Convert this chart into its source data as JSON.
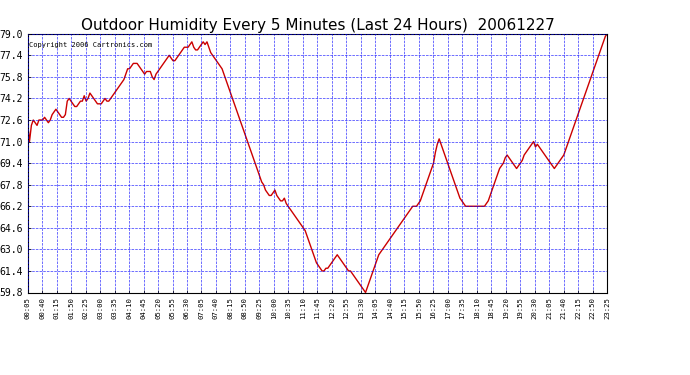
{
  "title": "Outdoor Humidity Every 5 Minutes (Last 24 Hours)  20061227",
  "copyright": "Copyright 2006 Cartronics.com",
  "ylim": [
    59.8,
    79.0
  ],
  "yticks": [
    59.8,
    61.4,
    63.0,
    64.6,
    66.2,
    67.8,
    69.4,
    71.0,
    72.6,
    74.2,
    75.8,
    77.4,
    79.0
  ],
  "bg_color": "#ffffff",
  "plot_bg_color": "#ffffff",
  "grid_color": "#0000ff",
  "line_color": "#cc0000",
  "line_width": 1.0,
  "title_fontsize": 11,
  "xtick_labels": [
    "00:05",
    "00:40",
    "01:15",
    "01:50",
    "02:25",
    "03:00",
    "03:35",
    "04:10",
    "04:45",
    "05:20",
    "05:55",
    "06:30",
    "07:05",
    "07:40",
    "08:15",
    "08:50",
    "09:25",
    "10:00",
    "10:35",
    "11:10",
    "11:45",
    "12:20",
    "12:55",
    "13:30",
    "14:05",
    "14:40",
    "15:15",
    "15:50",
    "16:25",
    "17:00",
    "17:35",
    "18:10",
    "18:45",
    "19:20",
    "19:55",
    "20:30",
    "21:05",
    "21:40",
    "22:15",
    "22:50",
    "23:25"
  ],
  "humidity_values": [
    72.4,
    71.0,
    72.2,
    72.6,
    72.4,
    72.2,
    72.6,
    72.6,
    72.6,
    72.8,
    72.6,
    72.4,
    72.6,
    73.0,
    73.2,
    73.4,
    73.2,
    73.0,
    72.8,
    72.8,
    73.0,
    74.0,
    74.2,
    74.0,
    73.8,
    73.6,
    73.6,
    73.8,
    74.0,
    74.0,
    74.4,
    74.0,
    74.2,
    74.6,
    74.4,
    74.2,
    74.0,
    73.8,
    73.8,
    73.8,
    74.0,
    74.2,
    74.0,
    74.0,
    74.2,
    74.4,
    74.6,
    74.8,
    75.0,
    75.2,
    75.4,
    75.6,
    76.0,
    76.4,
    76.4,
    76.6,
    76.8,
    76.8,
    76.8,
    76.6,
    76.4,
    76.2,
    76.0,
    76.2,
    76.2,
    76.2,
    75.8,
    75.6,
    76.0,
    76.2,
    76.4,
    76.6,
    76.8,
    77.0,
    77.2,
    77.4,
    77.2,
    77.0,
    77.0,
    77.2,
    77.4,
    77.6,
    77.8,
    78.0,
    78.0,
    78.0,
    78.2,
    78.4,
    78.0,
    77.8,
    77.8,
    78.0,
    78.2,
    78.4,
    78.2,
    78.4,
    78.0,
    77.6,
    77.4,
    77.2,
    77.0,
    76.8,
    76.6,
    76.4,
    76.0,
    75.6,
    75.2,
    74.8,
    74.4,
    74.0,
    73.6,
    73.2,
    72.8,
    72.4,
    72.0,
    71.6,
    71.2,
    70.8,
    70.4,
    70.0,
    69.6,
    69.2,
    68.8,
    68.4,
    68.0,
    67.8,
    67.4,
    67.2,
    67.0,
    67.0,
    67.2,
    67.4,
    67.0,
    66.8,
    66.6,
    66.6,
    66.8,
    66.4,
    66.2,
    66.0,
    65.8,
    65.6,
    65.4,
    65.2,
    65.0,
    64.8,
    64.6,
    64.4,
    64.0,
    63.6,
    63.2,
    62.8,
    62.4,
    62.0,
    61.8,
    61.6,
    61.4,
    61.4,
    61.6,
    61.6,
    61.8,
    62.0,
    62.2,
    62.4,
    62.6,
    62.4,
    62.2,
    62.0,
    61.8,
    61.6,
    61.4,
    61.4,
    61.2,
    61.0,
    60.8,
    60.6,
    60.4,
    60.2,
    60.0,
    59.8,
    60.2,
    60.6,
    61.0,
    61.4,
    61.8,
    62.2,
    62.6,
    62.8,
    63.0,
    63.2,
    63.4,
    63.6,
    63.8,
    64.0,
    64.2,
    64.4,
    64.6,
    64.8,
    65.0,
    65.2,
    65.4,
    65.6,
    65.8,
    66.0,
    66.2,
    66.2,
    66.2,
    66.4,
    66.6,
    67.0,
    67.4,
    67.8,
    68.2,
    68.6,
    69.0,
    69.4,
    70.2,
    70.8,
    71.2,
    70.8,
    70.4,
    70.0,
    69.6,
    69.2,
    68.8,
    68.4,
    68.0,
    67.6,
    67.2,
    66.8,
    66.6,
    66.4,
    66.2,
    66.2,
    66.2,
    66.2,
    66.2,
    66.2,
    66.2,
    66.2,
    66.2,
    66.2,
    66.2,
    66.4,
    66.6,
    67.0,
    67.4,
    67.8,
    68.2,
    68.6,
    69.0,
    69.2,
    69.4,
    69.8,
    70.0,
    69.8,
    69.6,
    69.4,
    69.2,
    69.0,
    69.2,
    69.4,
    69.6,
    70.0,
    70.2,
    70.4,
    70.6,
    70.8,
    71.0,
    70.6,
    70.8,
    70.6,
    70.4,
    70.2,
    70.0,
    69.8,
    69.6,
    69.4,
    69.2,
    69.0,
    69.2,
    69.4,
    69.6,
    69.8,
    70.0,
    70.4,
    70.8,
    71.2,
    71.6,
    72.0,
    72.4,
    72.8,
    73.2,
    73.6,
    74.0,
    74.4,
    74.8,
    75.2,
    75.6,
    76.0,
    76.4,
    76.8,
    77.2,
    77.6,
    78.0,
    78.4,
    78.8,
    79.0
  ]
}
